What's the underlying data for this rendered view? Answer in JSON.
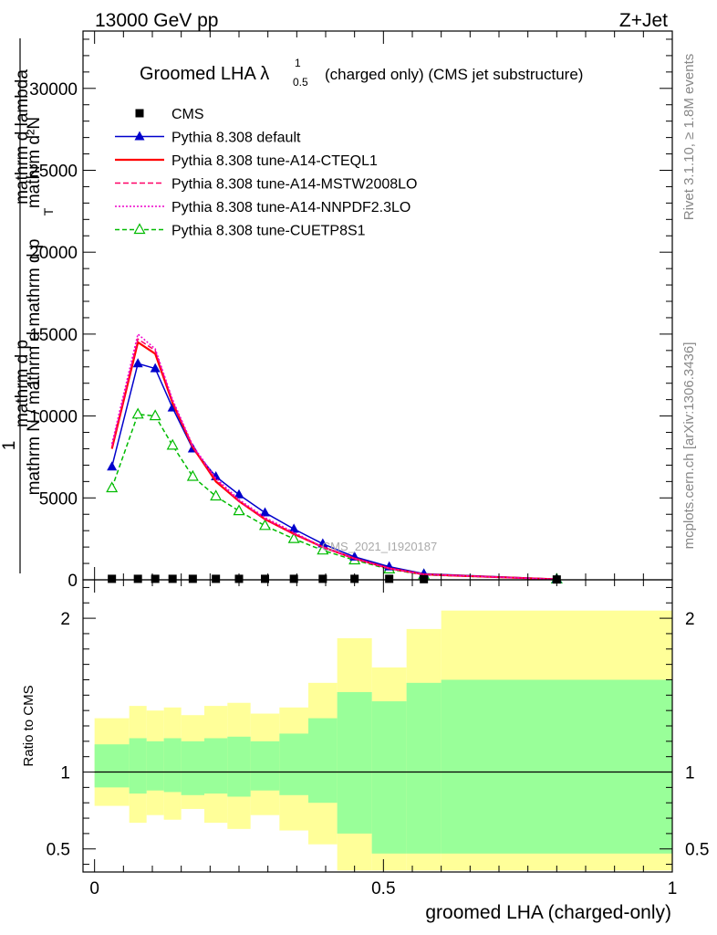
{
  "header": {
    "energy": "13000 GeV pp",
    "process": "Z+Jet"
  },
  "right_labels": {
    "rivet": "Rivet 3.1.10, ≥ 1.8M events",
    "mcplots": "mcplots.cern.ch [arXiv:1306.3436]"
  },
  "analysis_id": "CMS_2021_I1920187",
  "chart_data": [
    {
      "type": "line",
      "title": "Groomed LHA λ",
      "title_sup": "1",
      "title_sub": "0.5",
      "title_suffix": "(charged only) (CMS jet substructure)",
      "ylabel_lines": [
        "mathrm d²N",
        "mathrm d p_T mathrm d lambda",
        "1",
        "mathrm N / mathrm d mathrm d mathrm d p_T"
      ],
      "ylabel_display": [
        "mathrm d²N",
        "mathrm d p",
        "T",
        "mathrm d lambda",
        "1",
        "mathrm N / mathrm d mathrm d p",
        "T",
        "mathrm d lambda"
      ],
      "ylim": [
        0,
        33500
      ],
      "yticks": [
        0,
        5000,
        10000,
        15000,
        20000,
        25000,
        30000
      ],
      "ytick_labels": [
        "0",
        "5000",
        "10000",
        "15000",
        "20000",
        "25000",
        "30000"
      ],
      "xlim": [
        -0.02,
        1.0
      ],
      "x": [
        0.03,
        0.075,
        0.105,
        0.135,
        0.17,
        0.21,
        0.25,
        0.295,
        0.345,
        0.395,
        0.45,
        0.51,
        0.57,
        0.8
      ],
      "series": [
        {
          "name": "CMS",
          "color": "#000000",
          "marker": "square",
          "values": [
            60,
            60,
            60,
            60,
            60,
            60,
            60,
            60,
            60,
            60,
            60,
            60,
            40,
            20
          ]
        },
        {
          "name": "Pythia 8.308 default",
          "color": "#0000cc",
          "marker": "triangle",
          "dash": "",
          "values": [
            6900,
            13200,
            12900,
            10500,
            8000,
            6300,
            5200,
            4100,
            3100,
            2200,
            1400,
            800,
            370,
            40
          ]
        },
        {
          "name": "Pythia 8.308 tune-A14-CTEQL1",
          "color": "#ff0000",
          "marker": "none",
          "dash": "",
          "values": [
            8000,
            14500,
            13800,
            10800,
            8100,
            6000,
            4800,
            3700,
            2800,
            2000,
            1300,
            700,
            330,
            30
          ]
        },
        {
          "name": "Pythia 8.308 tune-A14-MSTW2008LO",
          "color": "#ff0066",
          "marker": "none",
          "dash": "6,3",
          "values": [
            8100,
            14700,
            14000,
            10900,
            8100,
            6100,
            4800,
            3700,
            2800,
            2000,
            1300,
            700,
            330,
            30
          ]
        },
        {
          "name": "Pythia 8.308 tune-A14-NNPDF2.3LO",
          "color": "#ee00cc",
          "marker": "none",
          "dash": "2,2",
          "values": [
            8300,
            15000,
            14100,
            11000,
            8200,
            6200,
            4900,
            3800,
            2900,
            2000,
            1300,
            700,
            330,
            30
          ]
        },
        {
          "name": "Pythia 8.308 tune-CUETP8S1",
          "color": "#00bb00",
          "marker": "open-triangle",
          "dash": "5,3",
          "values": [
            5600,
            10100,
            10000,
            8200,
            6300,
            5100,
            4200,
            3300,
            2500,
            1800,
            1200,
            650,
            300,
            30
          ]
        }
      ]
    },
    {
      "type": "area",
      "ylabel": "Ratio to CMS",
      "xlabel": "groomed LHA (charged-only)",
      "ylim": [
        0.35,
        2.25
      ],
      "yticks": [
        0.5,
        1,
        2
      ],
      "ytick_labels": [
        "0.5",
        "1",
        "2"
      ],
      "xlim": [
        -0.02,
        1.0
      ],
      "xticks": [
        0,
        0.5,
        1
      ],
      "xtick_labels": [
        "0",
        "0.5",
        "1"
      ],
      "bin_edges": [
        0.0,
        0.06,
        0.09,
        0.12,
        0.15,
        0.19,
        0.23,
        0.27,
        0.32,
        0.37,
        0.42,
        0.48,
        0.54,
        0.6,
        1.0
      ],
      "band_outer_upper": [
        1.35,
        1.43,
        1.4,
        1.42,
        1.37,
        1.43,
        1.45,
        1.38,
        1.42,
        1.58,
        1.87,
        1.68,
        1.93,
        2.05
      ],
      "band_outer_lower": [
        0.78,
        0.67,
        0.72,
        0.69,
        0.76,
        0.67,
        0.63,
        0.72,
        0.62,
        0.53,
        0.36,
        0.36,
        0.36,
        0.36
      ],
      "band_inner_upper": [
        1.18,
        1.22,
        1.2,
        1.22,
        1.2,
        1.22,
        1.23,
        1.2,
        1.25,
        1.35,
        1.52,
        1.46,
        1.58,
        1.6
      ],
      "band_inner_lower": [
        0.9,
        0.86,
        0.88,
        0.87,
        0.85,
        0.86,
        0.84,
        0.88,
        0.85,
        0.8,
        0.6,
        0.47,
        0.47,
        0.47
      ],
      "colors": {
        "outer": "#ffff99",
        "inner": "#99ff99"
      }
    }
  ]
}
